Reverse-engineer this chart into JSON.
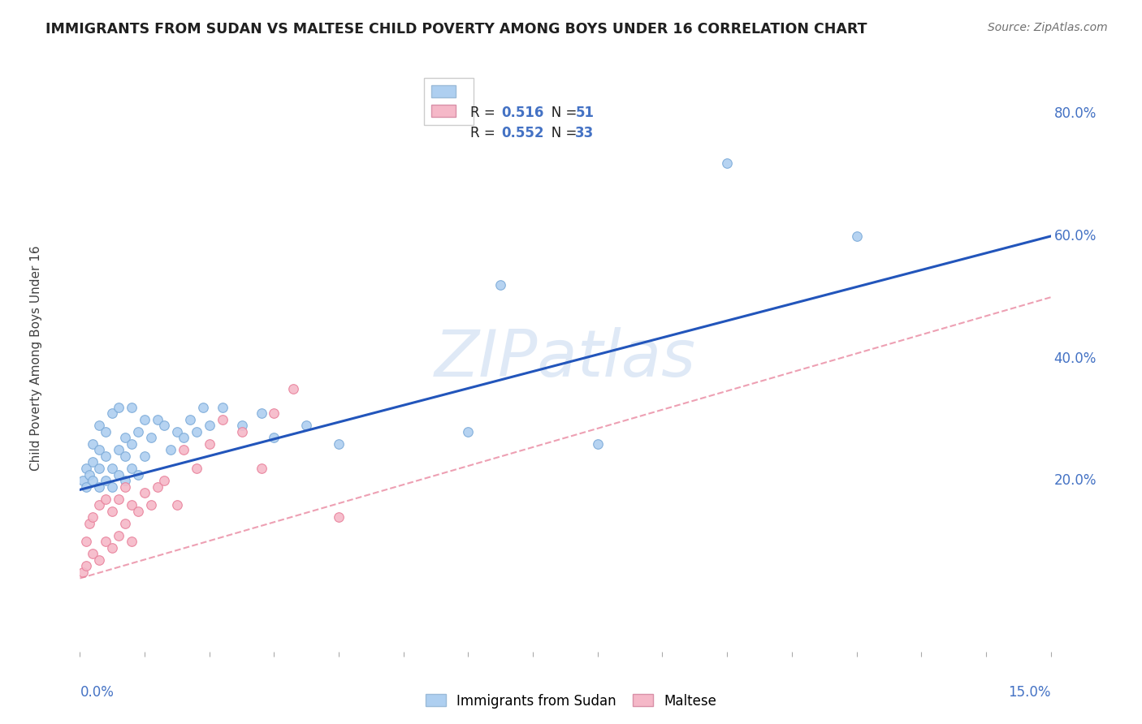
{
  "title": "IMMIGRANTS FROM SUDAN VS MALTESE CHILD POVERTY AMONG BOYS UNDER 16 CORRELATION CHART",
  "source": "Source: ZipAtlas.com",
  "ylabel": "Child Poverty Among Boys Under 16",
  "yaxis_labels": [
    "20.0%",
    "40.0%",
    "60.0%",
    "80.0%"
  ],
  "yaxis_vals": [
    0.2,
    0.4,
    0.6,
    0.8
  ],
  "xlim": [
    0.0,
    0.15
  ],
  "ylim": [
    -0.08,
    0.88
  ],
  "sudan_scatter_x": [
    0.0005,
    0.001,
    0.001,
    0.0015,
    0.002,
    0.002,
    0.002,
    0.003,
    0.003,
    0.003,
    0.003,
    0.004,
    0.004,
    0.004,
    0.005,
    0.005,
    0.005,
    0.006,
    0.006,
    0.006,
    0.007,
    0.007,
    0.007,
    0.008,
    0.008,
    0.008,
    0.009,
    0.009,
    0.01,
    0.01,
    0.011,
    0.012,
    0.013,
    0.014,
    0.015,
    0.016,
    0.017,
    0.018,
    0.019,
    0.02,
    0.022,
    0.025,
    0.028,
    0.03,
    0.035,
    0.04,
    0.06,
    0.065,
    0.08,
    0.1,
    0.12
  ],
  "sudan_scatter_y": [
    0.2,
    0.19,
    0.22,
    0.21,
    0.2,
    0.23,
    0.26,
    0.19,
    0.22,
    0.25,
    0.29,
    0.2,
    0.24,
    0.28,
    0.19,
    0.22,
    0.31,
    0.21,
    0.25,
    0.32,
    0.2,
    0.24,
    0.27,
    0.22,
    0.26,
    0.32,
    0.21,
    0.28,
    0.24,
    0.3,
    0.27,
    0.3,
    0.29,
    0.25,
    0.28,
    0.27,
    0.3,
    0.28,
    0.32,
    0.29,
    0.32,
    0.29,
    0.31,
    0.27,
    0.29,
    0.26,
    0.28,
    0.52,
    0.26,
    0.72,
    0.6
  ],
  "maltese_scatter_x": [
    0.0005,
    0.001,
    0.001,
    0.0015,
    0.002,
    0.002,
    0.003,
    0.003,
    0.004,
    0.004,
    0.005,
    0.005,
    0.006,
    0.006,
    0.007,
    0.007,
    0.008,
    0.008,
    0.009,
    0.01,
    0.011,
    0.012,
    0.013,
    0.015,
    0.016,
    0.018,
    0.02,
    0.022,
    0.025,
    0.028,
    0.03,
    0.033,
    0.04
  ],
  "maltese_scatter_y": [
    0.05,
    0.06,
    0.1,
    0.13,
    0.08,
    0.14,
    0.07,
    0.16,
    0.1,
    0.17,
    0.09,
    0.15,
    0.11,
    0.17,
    0.13,
    0.19,
    0.1,
    0.16,
    0.15,
    0.18,
    0.16,
    0.19,
    0.2,
    0.16,
    0.25,
    0.22,
    0.26,
    0.3,
    0.28,
    0.22,
    0.31,
    0.35,
    0.14
  ],
  "sudan_line_x": [
    0.0,
    0.15
  ],
  "sudan_line_y": [
    0.185,
    0.6
  ],
  "maltese_line_x": [
    0.0,
    0.15
  ],
  "maltese_line_y": [
    0.04,
    0.5
  ],
  "watermark_zip": "ZIP",
  "watermark_atlas": "atlas",
  "scatter_size": 70,
  "sudan_color": "#aecff0",
  "maltese_color": "#f5b8c8",
  "sudan_edge_color": "#7baad8",
  "maltese_edge_color": "#e8809a",
  "sudan_line_color": "#2255bb",
  "maltese_line_color": "#e8809a",
  "grid_color": "#cccccc",
  "title_color": "#202020",
  "axis_label_color": "#4472c4",
  "background_color": "#ffffff",
  "legend_r1": "0.516",
  "legend_n1": "51",
  "legend_r2": "0.552",
  "legend_n2": "33"
}
